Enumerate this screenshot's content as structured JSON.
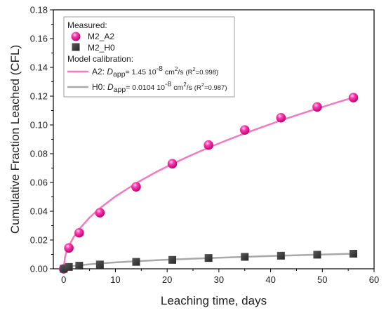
{
  "chart_data": {
    "type": "scatter",
    "title": "",
    "xlabel": "Leaching time, days",
    "ylabel": "Cumulative Fraction Leached (CFL)",
    "xlim": [
      -2,
      60
    ],
    "ylim": [
      0,
      0.18
    ],
    "x_ticks": [
      0,
      10,
      20,
      30,
      40,
      50,
      60
    ],
    "y_ticks": [
      0.0,
      0.02,
      0.04,
      0.06,
      0.08,
      0.1,
      0.12,
      0.14,
      0.16,
      0.18
    ],
    "grid": false,
    "legend_position": "top-left",
    "series": [
      {
        "name": "M2_A2",
        "kind": "measured",
        "marker": "sphere",
        "color": "#ff2aa6",
        "x": [
          0,
          1,
          3,
          7,
          14,
          21,
          28,
          35,
          42,
          49,
          56
        ],
        "y": [
          0.0,
          0.0145,
          0.025,
          0.039,
          0.057,
          0.073,
          0.086,
          0.0965,
          0.105,
          0.1125,
          0.119
        ]
      },
      {
        "name": "M2_H0",
        "kind": "measured",
        "marker": "square",
        "color": "#3a3a3a",
        "x": [
          0,
          1,
          3,
          7,
          14,
          21,
          28,
          35,
          42,
          49,
          56
        ],
        "y": [
          0.0,
          0.0013,
          0.0022,
          0.003,
          0.0048,
          0.0062,
          0.0075,
          0.0083,
          0.0091,
          0.0098,
          0.0105
        ]
      },
      {
        "name": "A2",
        "kind": "model",
        "color": "#f27ac0",
        "x": [
          0,
          0.25,
          0.5,
          1,
          2,
          3,
          5,
          7,
          10,
          14,
          18,
          21,
          25,
          28,
          32,
          35,
          40,
          42,
          46,
          49,
          53,
          56
        ],
        "y": [
          0.0,
          0.008,
          0.0113,
          0.0159,
          0.0225,
          0.0276,
          0.0356,
          0.0421,
          0.0503,
          0.0595,
          0.0675,
          0.0729,
          0.0795,
          0.0842,
          0.09,
          0.0941,
          0.1006,
          0.1031,
          0.1079,
          0.1113,
          0.1158,
          0.119
        ]
      },
      {
        "name": "H0",
        "kind": "model",
        "color": "#a9a9a9",
        "x": [
          0,
          0.25,
          0.5,
          1,
          2,
          3,
          5,
          7,
          10,
          14,
          18,
          21,
          25,
          28,
          32,
          35,
          40,
          42,
          46,
          49,
          53,
          56
        ],
        "y": [
          0.0,
          0.0007,
          0.00099,
          0.0014,
          0.00198,
          0.00243,
          0.00314,
          0.00371,
          0.00443,
          0.00524,
          0.00594,
          0.00642,
          0.007,
          0.00741,
          0.00792,
          0.00829,
          0.00886,
          0.00907,
          0.00949,
          0.0098,
          0.01019,
          0.01048
        ]
      }
    ],
    "legend": {
      "measured_header": "Measured:",
      "model_header": "Model calibration:",
      "items": [
        {
          "series": "M2_A2",
          "label": "M2_A2"
        },
        {
          "series": "M2_H0",
          "label": "M2_H0"
        },
        {
          "series": "A2",
          "prefix": "A2: ",
          "d_sym": "D",
          "d_sub": "app",
          "value": "= 1.45 10",
          "exp": "-8",
          "unit": " cm",
          "unit_exp": "2",
          "unit_tail": "/s ",
          "r_open": "(R",
          "r_exp": "2",
          "r_tail": "=0.998)"
        },
        {
          "series": "H0",
          "prefix": "H0: ",
          "d_sym": "D",
          "d_sub": "app",
          "value": "= 0.0104 10",
          "exp": "-8",
          "unit": " cm",
          "unit_exp": "2",
          "unit_tail": "/s ",
          "r_open": "(R",
          "r_exp": "2",
          "r_tail": "=0.987)"
        }
      ]
    }
  }
}
